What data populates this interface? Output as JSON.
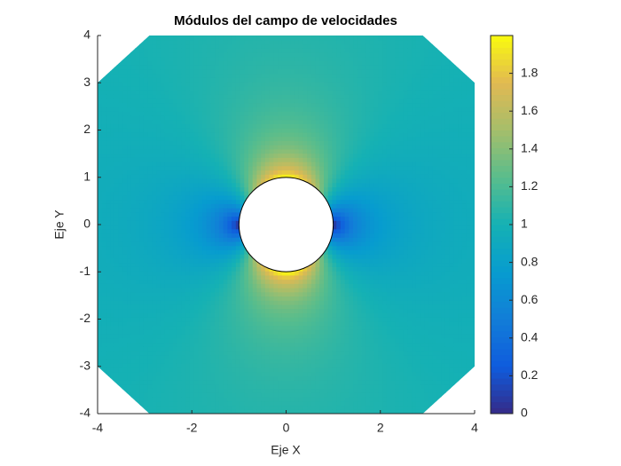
{
  "chart_data": {
    "type": "heatmap",
    "title": "Módulos del campo de velocidades",
    "xlabel": "Eje X",
    "ylabel": "Eje Y",
    "xlim": [
      -4,
      4
    ],
    "ylim": [
      -4,
      4
    ],
    "xticks": [
      -4,
      -2,
      0,
      2,
      4
    ],
    "yticks": [
      -4,
      -3,
      -2,
      -1,
      0,
      1,
      2,
      3,
      4
    ],
    "clim": [
      0,
      2
    ],
    "cticks": [
      0,
      0.2,
      0.4,
      0.6,
      0.8,
      1,
      1.2,
      1.4,
      1.6,
      1.8
    ],
    "colormap": "parula"
  }
}
